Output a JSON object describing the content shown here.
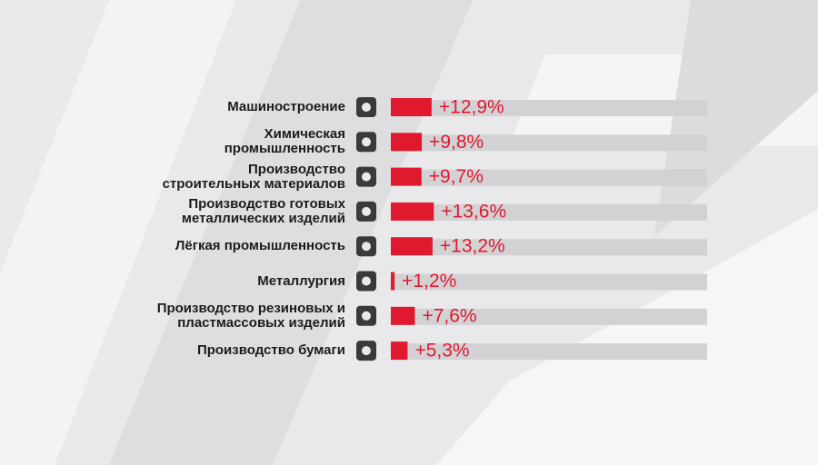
{
  "chart_data": {
    "type": "bar",
    "orientation": "horizontal",
    "categories": [
      "Машиностроение",
      "Химическая\nпромышленность",
      "Производство\nстроительных материалов",
      "Производство готовых\nметаллических изделий",
      "Лёгкая промышленность",
      "Металлургия",
      "Производство резиновых и\nпластмассовых изделий",
      "Производство бумаги"
    ],
    "values": [
      12.9,
      9.8,
      9.7,
      13.6,
      13.2,
      1.2,
      7.6,
      5.3
    ],
    "value_labels": [
      "+12,9%",
      "+9,8%",
      "+9,7%",
      "+13,6%",
      "+13,2%",
      "+1,2%",
      "+7,6%",
      "+5,3%"
    ],
    "color": "#e0192e",
    "track_color": "#d2d2d5",
    "xlim": [
      0,
      100
    ]
  }
}
